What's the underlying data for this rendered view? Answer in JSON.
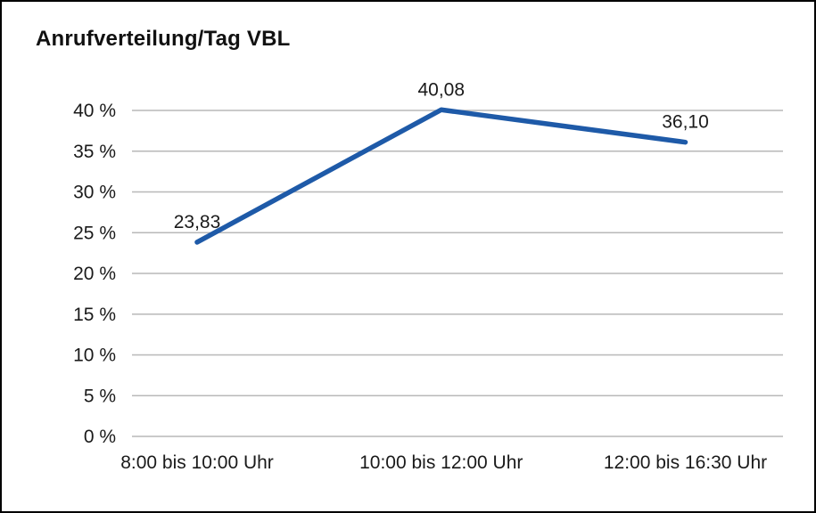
{
  "page": {
    "background_color": "#ffffff",
    "frame_border_color": "#000000"
  },
  "chart_data": {
    "type": "line",
    "title": "Anrufverteilung/Tag VBL",
    "categories": [
      "8:00 bis 10:00 Uhr",
      "10:00 bis 12:00 Uhr",
      "12:00 bis 16:30 Uhr"
    ],
    "series": [
      {
        "name": "Anrufverteilung/Tag VBL",
        "values": [
          23.83,
          40.08,
          36.1
        ],
        "data_labels": [
          "23,83",
          "40,08",
          "36,10"
        ],
        "color": "#1e5aa8"
      }
    ],
    "xlabel": "",
    "ylabel": "",
    "ylim": [
      0,
      40
    ],
    "ytick_step": 5,
    "ytick_labels": [
      "0 %",
      "5 %",
      "10 %",
      "15 %",
      "20 %",
      "25 %",
      "30 %",
      "35 %",
      "40 %"
    ],
    "grid": "horizontal",
    "gridline_color": "#b8b8b8",
    "text_color": "#1a1a1a",
    "legend": "none"
  }
}
